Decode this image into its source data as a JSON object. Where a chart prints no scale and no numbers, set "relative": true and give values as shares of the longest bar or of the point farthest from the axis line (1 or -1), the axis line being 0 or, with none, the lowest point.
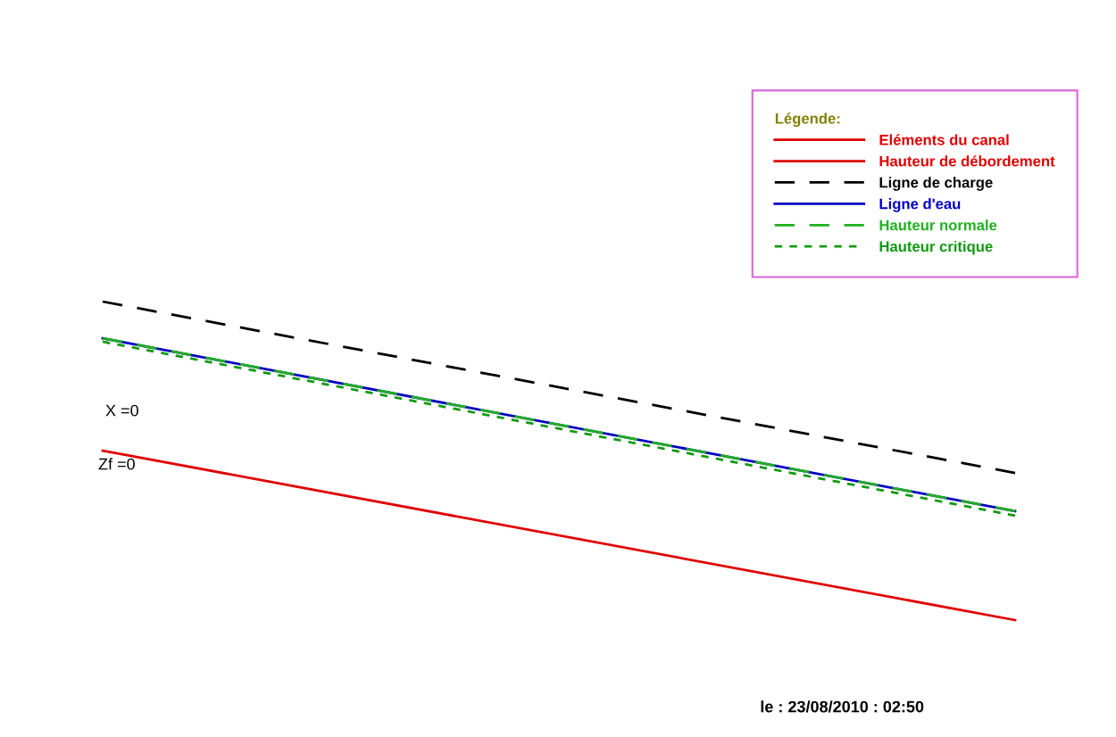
{
  "chart_data": {
    "type": "line",
    "relative": true,
    "categories": [
      null,
      null
    ],
    "legend": "top right",
    "legend_title": "Légende:",
    "tick_labels": false,
    "series": [
      {
        "name": "Eléments du canal",
        "color": "#e00000",
        "values": [
          0.532,
          0
        ],
        "line_style": "solid"
      },
      {
        "name": "Hauteur de débordement",
        "color": "#e00000",
        "values": [
          null,
          null
        ],
        "line_style": "solid"
      },
      {
        "name": "Ligne de charge",
        "color": "#000000",
        "values": [
          1,
          0.462
        ],
        "line_style": "dashed"
      },
      {
        "name": "Ligne d'eau",
        "color": "#0000c0",
        "values": [
          0.885,
          0.342
        ],
        "line_style": "solid"
      },
      {
        "name": "Hauteur normale",
        "color": "#20b020",
        "values": [
          0.885,
          0.342
        ],
        "line_style": "dashed"
      },
      {
        "name": "Hauteur critique",
        "color": "#109a10",
        "values": [
          0.874,
          0.328
        ],
        "line_style": "dotted"
      }
    ],
    "annotations": [
      "X =0",
      "Zf =0",
      "le : 23/08/2010 : 02:50"
    ]
  }
}
